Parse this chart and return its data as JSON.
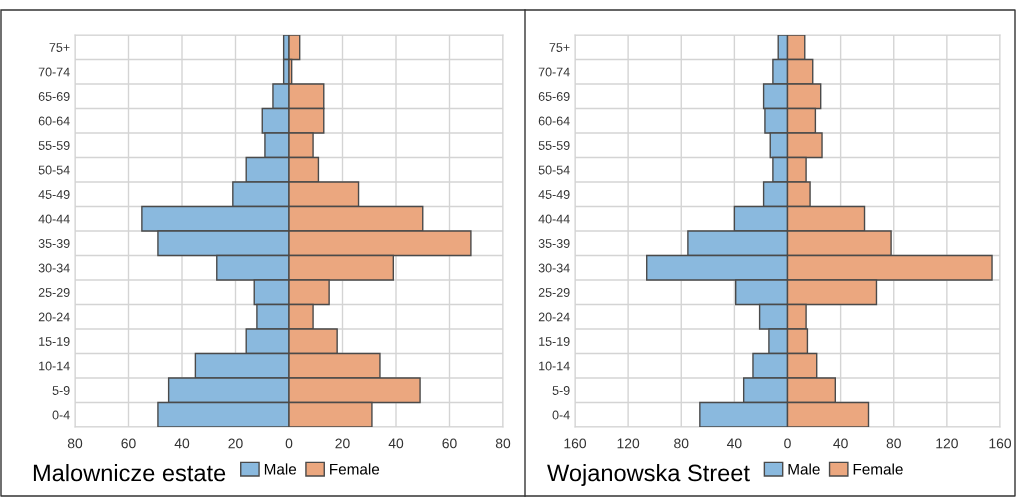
{
  "chart_data": [
    {
      "type": "bar",
      "orientation": "horizontal",
      "stacked": true,
      "title": "Malownicze estate",
      "categories": [
        "75+",
        "70-74",
        "65-69",
        "60-64",
        "55-59",
        "50-54",
        "45-49",
        "40-44",
        "35-39",
        "30-34",
        "25-29",
        "20-24",
        "15-19",
        "10-14",
        "5-9",
        "0-4"
      ],
      "series": [
        {
          "name": "Male",
          "color": "#8ab9de",
          "values": [
            -2,
            -2,
            -6,
            -10,
            -9,
            -16,
            -21,
            -55,
            -49,
            -27,
            -13,
            -12,
            -16,
            -35,
            -45,
            -49
          ]
        },
        {
          "name": "Female",
          "color": "#eba77f",
          "values": [
            4,
            1,
            13,
            13,
            9,
            11,
            26,
            50,
            68,
            39,
            15,
            9,
            18,
            34,
            49,
            31
          ]
        }
      ],
      "xlim": [
        -80,
        80
      ],
      "xticks": [
        {
          "value": -80,
          "label": "80"
        },
        {
          "value": -60,
          "label": "60"
        },
        {
          "value": -40,
          "label": "40"
        },
        {
          "value": -20,
          "label": "20"
        },
        0,
        20,
        40,
        60,
        80
      ],
      "grid": true,
      "legend": "bottom"
    },
    {
      "type": "bar",
      "orientation": "horizontal",
      "stacked": true,
      "title": "Wojanowska Street",
      "categories": [
        "75+",
        "70-74",
        "65-69",
        "60-64",
        "55-59",
        "50-54",
        "45-49",
        "40-44",
        "35-39",
        "30-34",
        "25-29",
        "20-24",
        "15-19",
        "10-14",
        "5-9",
        "0-4"
      ],
      "series": [
        {
          "name": "Male",
          "color": "#8ab9de",
          "values": [
            -7,
            -11,
            -18,
            -17,
            -13,
            -11,
            -18,
            -40,
            -75,
            -106,
            -39,
            -21,
            -14,
            -26,
            -33,
            -66
          ]
        },
        {
          "name": "Female",
          "color": "#eba77f",
          "values": [
            13,
            19,
            25,
            21,
            26,
            14,
            17,
            58,
            78,
            154,
            67,
            14,
            15,
            22,
            36,
            61
          ]
        }
      ],
      "xlim": [
        -160,
        160
      ],
      "xticks": [
        {
          "value": -160,
          "label": "160"
        },
        {
          "value": -120,
          "label": "120"
        },
        {
          "value": -80,
          "label": "80"
        },
        {
          "value": -40,
          "label": "40"
        },
        0,
        40,
        80,
        120,
        160
      ],
      "grid": true,
      "legend": "bottom"
    }
  ]
}
